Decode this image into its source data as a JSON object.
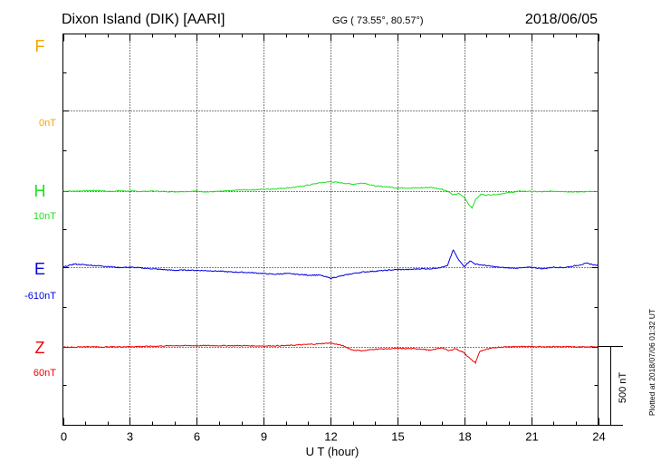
{
  "header": {
    "station": "Dixon Island (DIK)  [AARI]",
    "coords": "GG ( 73.55°,  80.57°)",
    "date": "2018/06/05"
  },
  "side_note": "Plotted at 2018/07/06 01:32 UT",
  "scale_label": "500 nT",
  "chart_data": {
    "type": "line",
    "xlabel": "U T (hour)",
    "xlim": [
      0,
      24
    ],
    "xticks": [
      0,
      3,
      6,
      9,
      12,
      15,
      18,
      21,
      24
    ],
    "grid": true,
    "scale_bar_nT": 500,
    "series": [
      {
        "name": "F",
        "baseline": "0nT",
        "color": "#f5a500",
        "x": [],
        "y": []
      },
      {
        "name": "H",
        "baseline": "10nT",
        "color": "#22dd22",
        "x": [
          0,
          0.5,
          1,
          1.5,
          2,
          2.5,
          3,
          3.5,
          4,
          4.5,
          5,
          5.5,
          6,
          6.5,
          7,
          7.5,
          8,
          8.5,
          9,
          9.5,
          10,
          10.5,
          11,
          11.5,
          12,
          12.5,
          13,
          13.5,
          14,
          14.5,
          15,
          15.5,
          16,
          16.5,
          17,
          17.25,
          17.5,
          17.75,
          18,
          18.2,
          18.35,
          18.5,
          18.75,
          19,
          19.5,
          20,
          20.5,
          21,
          21.5,
          22,
          22.5,
          23,
          23.5,
          24
        ],
        "y": [
          10,
          10,
          12,
          15,
          8,
          12,
          10,
          8,
          10,
          8,
          6,
          8,
          10,
          5,
          8,
          12,
          18,
          18,
          22,
          24,
          30,
          36,
          48,
          62,
          70,
          62,
          54,
          62,
          42,
          38,
          30,
          30,
          30,
          34,
          22,
          10,
          -15,
          -5,
          -30,
          -75,
          -95,
          -45,
          -10,
          -15,
          -10,
          0,
          10,
          8,
          6,
          10,
          8,
          4,
          8,
          6
        ]
      },
      {
        "name": "E",
        "baseline": "-610nT",
        "color": "#0000dd",
        "x": [
          0,
          0.5,
          1,
          1.5,
          2,
          2.5,
          3,
          3.5,
          4,
          4.5,
          5,
          5.5,
          6,
          6.5,
          7,
          7.5,
          8,
          8.5,
          9,
          9.5,
          10,
          10.5,
          11,
          11.5,
          12,
          12.5,
          13,
          13.5,
          14,
          14.5,
          15,
          15.5,
          16,
          16.5,
          17,
          17.25,
          17.5,
          17.75,
          18,
          18.25,
          18.5,
          19,
          19.5,
          20,
          20.5,
          21,
          21.5,
          22,
          22.5,
          23,
          23.5,
          24
        ],
        "y": [
          -610,
          -590,
          -595,
          -600,
          -605,
          -612,
          -610,
          -615,
          -620,
          -625,
          -630,
          -628,
          -630,
          -632,
          -635,
          -640,
          -642,
          -645,
          -650,
          -655,
          -650,
          -655,
          -660,
          -660,
          -680,
          -665,
          -650,
          -640,
          -635,
          -630,
          -625,
          -625,
          -620,
          -620,
          -610,
          -600,
          -500,
          -565,
          -605,
          -570,
          -590,
          -600,
          -610,
          -615,
          -615,
          -610,
          -620,
          -610,
          -612,
          -600,
          -585,
          -600
        ]
      },
      {
        "name": "Z",
        "baseline": "60nT",
        "color": "#ee0000",
        "x": [
          0,
          0.5,
          1,
          1.5,
          2,
          3,
          4,
          5,
          6,
          7,
          8,
          9,
          10,
          10.5,
          11,
          11.5,
          12,
          12.5,
          13,
          13.5,
          14,
          15,
          16,
          16.5,
          17,
          17.3,
          17.6,
          18,
          18.3,
          18.5,
          18.7,
          19,
          19.5,
          20,
          21,
          22,
          23,
          24
        ],
        "y": [
          60,
          58,
          62,
          60,
          60,
          62,
          64,
          68,
          68,
          68,
          68,
          66,
          68,
          72,
          76,
          80,
          85,
          70,
          40,
          36,
          46,
          50,
          48,
          38,
          56,
          35,
          50,
          22,
          -20,
          -40,
          32,
          45,
          58,
          62,
          62,
          62,
          60,
          62
        ]
      }
    ]
  }
}
